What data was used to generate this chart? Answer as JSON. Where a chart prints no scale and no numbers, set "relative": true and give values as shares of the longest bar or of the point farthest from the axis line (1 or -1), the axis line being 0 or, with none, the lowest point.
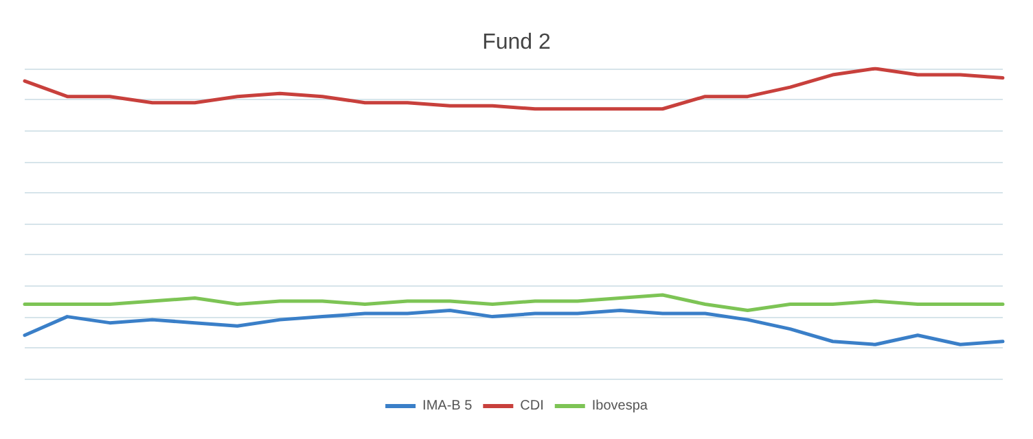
{
  "chart_data": {
    "type": "line",
    "title": "Fund 2",
    "relative": true,
    "grid": "y",
    "legend": "bottom",
    "marker": "none",
    "categories": [
      null,
      null,
      null,
      null,
      null,
      null,
      null,
      null,
      null,
      null,
      null,
      null,
      null,
      null,
      null,
      null,
      null,
      null,
      null,
      null,
      null,
      null,
      null,
      null
    ],
    "series": [
      {
        "name": "IMA-B 5",
        "color": "#3a7fc8",
        "values": [
          0.14,
          0.2,
          0.18,
          0.19,
          0.18,
          0.17,
          0.19,
          0.2,
          0.21,
          0.21,
          0.22,
          0.2,
          0.21,
          0.21,
          0.22,
          0.21,
          0.21,
          0.19,
          0.16,
          0.12,
          0.11,
          0.14,
          0.11,
          0.12
        ]
      },
      {
        "name": "CDI",
        "color": "#c8403c",
        "values": [
          0.96,
          0.91,
          0.91,
          0.89,
          0.89,
          0.91,
          0.92,
          0.91,
          0.89,
          0.89,
          0.88,
          0.88,
          0.87,
          0.87,
          0.87,
          0.87,
          0.91,
          0.91,
          0.94,
          0.98,
          1.0,
          0.98,
          0.98,
          0.97
        ]
      },
      {
        "name": "Ibovespa",
        "color": "#7dc455",
        "values": [
          0.24,
          0.24,
          0.24,
          0.25,
          0.26,
          0.24,
          0.25,
          0.25,
          0.24,
          0.25,
          0.25,
          0.24,
          0.25,
          0.25,
          0.26,
          0.27,
          0.24,
          0.22,
          0.24,
          0.24,
          0.25,
          0.24,
          0.24,
          0.24
        ]
      }
    ]
  }
}
